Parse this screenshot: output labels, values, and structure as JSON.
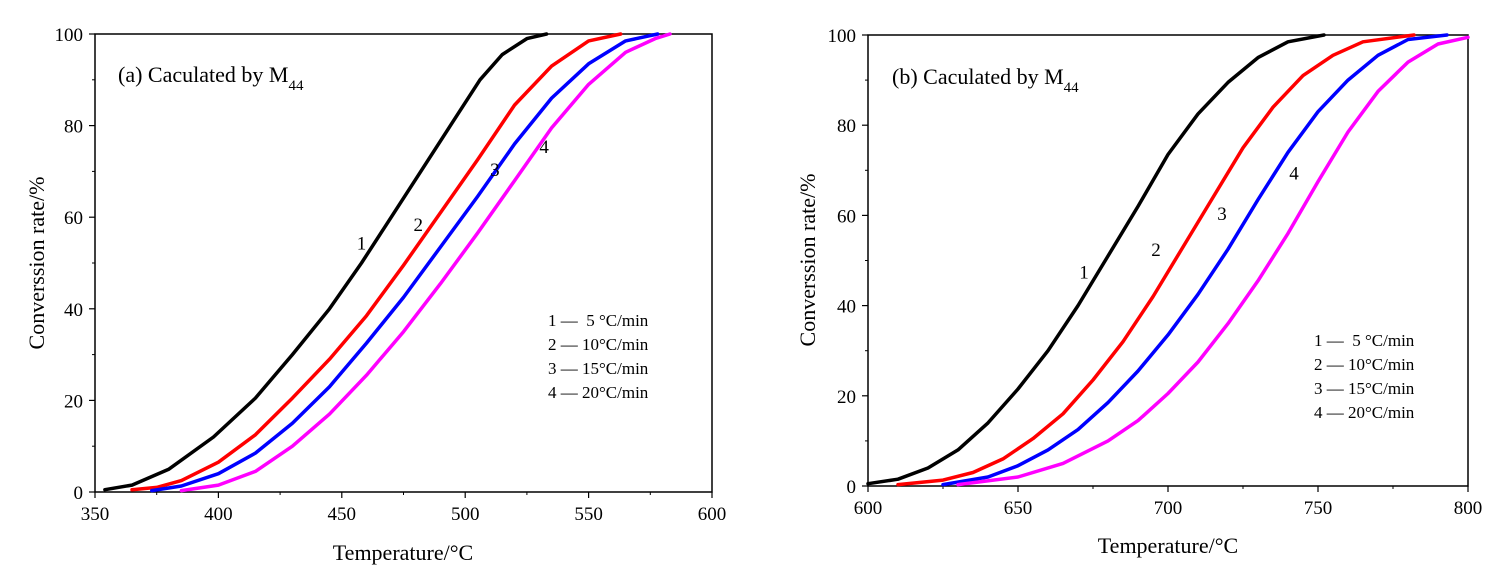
{
  "chart_data": [
    {
      "type": "line",
      "panel": "a",
      "title": "(a) Caculated by M",
      "title_subscript": "44",
      "xlabel": "Temperature/°C",
      "ylabel": "Converssion rate/%",
      "xlim": [
        350,
        600
      ],
      "ylim": [
        0,
        100
      ],
      "xticks": [
        350,
        400,
        450,
        500,
        550,
        600
      ],
      "yticks": [
        0,
        20,
        40,
        60,
        80,
        100
      ],
      "grid": false,
      "legend_position": "middle-right",
      "legend": [
        "1 —  5 °C/min",
        "2 — 10°C/min",
        "3 — 15°C/min",
        "4 — 20°C/min"
      ],
      "series": [
        {
          "name": "1",
          "color": "#000000",
          "label_at": [
            458,
            53
          ],
          "points": [
            [
              354,
              0.5
            ],
            [
              365,
              1.5
            ],
            [
              380,
              5
            ],
            [
              398,
              12
            ],
            [
              415,
              20.5
            ],
            [
              430,
              30
            ],
            [
              445,
              40
            ],
            [
              458,
              50
            ],
            [
              470,
              60
            ],
            [
              482,
              70
            ],
            [
              494,
              80
            ],
            [
              506,
              90
            ],
            [
              515,
              95.5
            ],
            [
              525,
              99
            ],
            [
              533,
              100
            ]
          ]
        },
        {
          "name": "2",
          "color": "#ff0000",
          "label_at": [
            481,
            57
          ],
          "points": [
            [
              365,
              0.5
            ],
            [
              375,
              1
            ],
            [
              385,
              2.5
            ],
            [
              400,
              6.5
            ],
            [
              415,
              12.5
            ],
            [
              430,
              20.5
            ],
            [
              445,
              29
            ],
            [
              460,
              38.5
            ],
            [
              475,
              49.5
            ],
            [
              490,
              61
            ],
            [
              505,
              72.5
            ],
            [
              520,
              84.5
            ],
            [
              535,
              93
            ],
            [
              550,
              98.5
            ],
            [
              563,
              100
            ]
          ]
        },
        {
          "name": "3",
          "color": "#0000ff",
          "label_at": [
            512,
            69
          ],
          "points": [
            [
              373,
              0.3
            ],
            [
              385,
              1.3
            ],
            [
              400,
              4
            ],
            [
              415,
              8.5
            ],
            [
              430,
              15
            ],
            [
              445,
              23
            ],
            [
              460,
              32.5
            ],
            [
              475,
              42.5
            ],
            [
              490,
              53.5
            ],
            [
              505,
              64.5
            ],
            [
              520,
              76
            ],
            [
              535,
              86
            ],
            [
              550,
              93.5
            ],
            [
              565,
              98.5
            ],
            [
              578,
              100
            ]
          ]
        },
        {
          "name": "4",
          "color": "#ff00ff",
          "label_at": [
            532,
            74
          ],
          "points": [
            [
              385,
              0.3
            ],
            [
              400,
              1.5
            ],
            [
              415,
              4.5
            ],
            [
              430,
              10
            ],
            [
              445,
              17
            ],
            [
              460,
              25.5
            ],
            [
              475,
              35
            ],
            [
              490,
              45.5
            ],
            [
              505,
              56.5
            ],
            [
              520,
              68
            ],
            [
              535,
              79.5
            ],
            [
              550,
              89
            ],
            [
              565,
              96
            ],
            [
              577,
              99
            ],
            [
              583,
              100
            ]
          ]
        }
      ]
    },
    {
      "type": "line",
      "panel": "b",
      "title": "(b) Caculated by M",
      "title_subscript": "44",
      "xlabel": "Temperature/°C",
      "ylabel": "Converssion rate/%",
      "xlim": [
        600,
        800
      ],
      "ylim": [
        0,
        100
      ],
      "xticks": [
        600,
        650,
        700,
        750,
        800
      ],
      "yticks": [
        0,
        20,
        40,
        60,
        80,
        100
      ],
      "grid": false,
      "legend_position": "lower-right",
      "legend": [
        "1 —  5 °C/min",
        "2 — 10°C/min",
        "3 — 15°C/min",
        "4 — 20°C/min"
      ],
      "series": [
        {
          "name": "1",
          "color": "#000000",
          "label_at": [
            672,
            46
          ],
          "points": [
            [
              600,
              0.5
            ],
            [
              610,
              1.5
            ],
            [
              620,
              4
            ],
            [
              630,
              8
            ],
            [
              640,
              14
            ],
            [
              650,
              21.5
            ],
            [
              660,
              30
            ],
            [
              670,
              40
            ],
            [
              680,
              51
            ],
            [
              690,
              62
            ],
            [
              700,
              73.5
            ],
            [
              710,
              82.5
            ],
            [
              720,
              89.5
            ],
            [
              730,
              95
            ],
            [
              740,
              98.5
            ],
            [
              752,
              100
            ]
          ]
        },
        {
          "name": "2",
          "color": "#ff0000",
          "label_at": [
            696,
            51
          ],
          "points": [
            [
              610,
              0.3
            ],
            [
              625,
              1.3
            ],
            [
              635,
              3
            ],
            [
              645,
              6
            ],
            [
              655,
              10.5
            ],
            [
              665,
              16
            ],
            [
              675,
              23.5
            ],
            [
              685,
              32
            ],
            [
              695,
              42
            ],
            [
              705,
              53
            ],
            [
              715,
              64
            ],
            [
              725,
              75
            ],
            [
              735,
              84
            ],
            [
              745,
              91
            ],
            [
              755,
              95.5
            ],
            [
              765,
              98.5
            ],
            [
              782,
              100
            ]
          ]
        },
        {
          "name": "3",
          "color": "#0000ff",
          "label_at": [
            718,
            59
          ],
          "points": [
            [
              625,
              0.3
            ],
            [
              640,
              2
            ],
            [
              650,
              4.5
            ],
            [
              660,
              8
            ],
            [
              670,
              12.5
            ],
            [
              680,
              18.5
            ],
            [
              690,
              25.5
            ],
            [
              700,
              33.5
            ],
            [
              710,
              42.5
            ],
            [
              720,
              52.5
            ],
            [
              730,
              63.5
            ],
            [
              740,
              74
            ],
            [
              750,
              83
            ],
            [
              760,
              90
            ],
            [
              770,
              95.5
            ],
            [
              780,
              99
            ],
            [
              793,
              100
            ]
          ]
        },
        {
          "name": "4",
          "color": "#ff00ff",
          "label_at": [
            742,
            68
          ],
          "points": [
            [
              630,
              0.3
            ],
            [
              650,
              2
            ],
            [
              665,
              5
            ],
            [
              680,
              10
            ],
            [
              690,
              14.5
            ],
            [
              700,
              20.5
            ],
            [
              710,
              27.5
            ],
            [
              720,
              36
            ],
            [
              730,
              45.5
            ],
            [
              740,
              56
            ],
            [
              750,
              67.5
            ],
            [
              760,
              78.5
            ],
            [
              770,
              87.5
            ],
            [
              780,
              94
            ],
            [
              790,
              98
            ],
            [
              800,
              99.5
            ]
          ]
        }
      ]
    }
  ]
}
